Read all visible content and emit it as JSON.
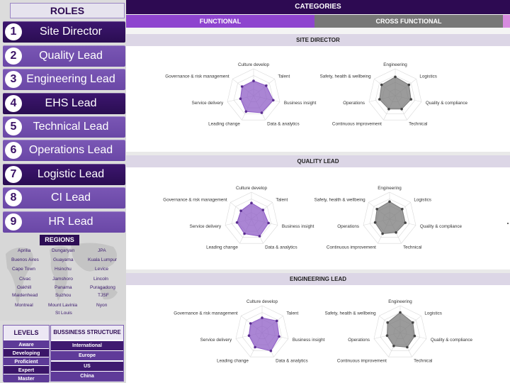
{
  "roles_header": "ROLES",
  "roles": [
    {
      "num": "1",
      "label": "Site Director"
    },
    {
      "num": "2",
      "label": "Quality Lead"
    },
    {
      "num": "3",
      "label": "Engineering Lead"
    },
    {
      "num": "4",
      "label": "EHS Lead"
    },
    {
      "num": "5",
      "label": "Technical Lead"
    },
    {
      "num": "6",
      "label": "Operations Lead"
    },
    {
      "num": "7",
      "label": "Logistic Lead"
    },
    {
      "num": "8",
      "label": "CI Lead"
    },
    {
      "num": "9",
      "label": "HR Lead"
    }
  ],
  "regions_header": "REGIONS",
  "regions": [
    "Aprilia",
    "Dungaryan",
    "JPA",
    "Buenos Aires",
    "Guayama",
    "Kuala Lumpur",
    "Cape Town",
    "Hsinchu",
    "Levice",
    "Civac",
    "Jamshoro",
    "Lincoln",
    "Oakhill",
    "Panama",
    "Puragadong",
    "Maidenhead",
    "Suzhou",
    "TJSF",
    "Montreal",
    "Mount Lavinia",
    "Nyon",
    "St Louis"
  ],
  "levels": {
    "title": "LEVELS",
    "items": [
      "Aware",
      "Developing",
      "Proficient",
      "Expert",
      "Master"
    ]
  },
  "business_structure": {
    "title": "BUSSINESS STRUCTURE",
    "items": [
      "International",
      "Europe",
      "US",
      "China"
    ]
  },
  "categories_title": "CATEGORIES",
  "tabs": {
    "functional": "FUNCTIONAL",
    "cross_functional": "CROSS FUNCTIONAL"
  },
  "functional_axes": [
    "Culture develop",
    "Talent",
    "Business insight",
    "Data & analytics",
    "Leading change",
    "Service delivery",
    "Governance & risk management"
  ],
  "cross_axes": [
    "Engineering",
    "Logistics",
    "Quality & compliance",
    "Technical",
    "Continuous improvement",
    "Operations",
    "Safety, health & wellbeing"
  ],
  "colors": {
    "functional_fill": "#8e5cc6",
    "cross_fill": "#7a7a7a",
    "primary_dark": "#2d0a52",
    "accent": "#8e44cf"
  },
  "sections": [
    {
      "title": "SITE DIRECTOR",
      "functional_values": [
        0.55,
        0.6,
        0.75,
        0.7,
        0.65,
        0.5,
        0.55
      ],
      "cross_values": [
        0.7,
        0.65,
        0.6,
        0.55,
        0.55,
        0.6,
        0.65
      ]
    },
    {
      "title": "QUALITY LEAD",
      "functional_values": [
        0.6,
        0.55,
        0.65,
        0.7,
        0.6,
        0.55,
        0.5
      ],
      "cross_values": [
        0.65,
        0.6,
        0.6,
        0.55,
        0.6,
        0.55,
        0.6
      ]
    },
    {
      "title": "ENGINEERING LEAD",
      "functional_values": [
        0.55,
        0.7,
        0.65,
        0.75,
        0.6,
        0.5,
        0.55
      ],
      "cross_values": [
        0.75,
        0.6,
        0.55,
        0.6,
        0.55,
        0.5,
        0.6
      ]
    }
  ]
}
